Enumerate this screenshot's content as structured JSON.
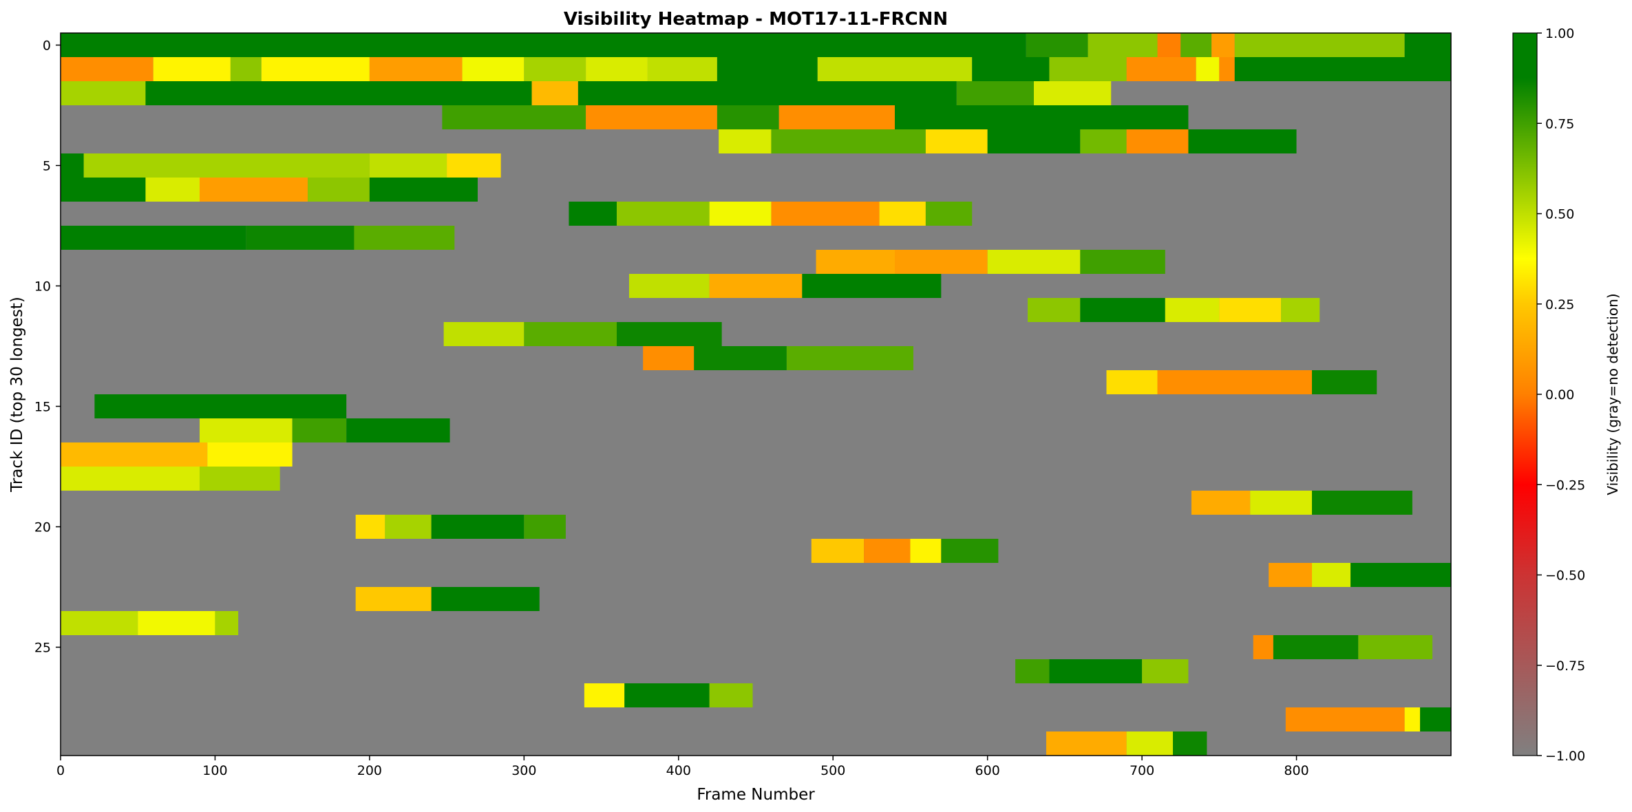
{
  "chart_data": {
    "type": "heatmap",
    "title": "Visibility Heatmap - MOT17-11-FRCNN",
    "xlabel": "Frame Number",
    "ylabel": "Track ID (top 30 longest)",
    "xlim": [
      0,
      900
    ],
    "ylim": [
      29.5,
      -0.5
    ],
    "x_ticks": [
      0,
      100,
      200,
      300,
      400,
      500,
      600,
      700,
      800
    ],
    "y_ticks": [
      0,
      5,
      10,
      15,
      20,
      25
    ],
    "colorbar": {
      "label": "Visibility (gray=no detection)",
      "range": [
        -1.0,
        1.0
      ],
      "ticks": [
        "1.00",
        "0.75",
        "0.50",
        "0.25",
        "0.00",
        "−0.25",
        "−0.50",
        "−0.75",
        "−1.00"
      ],
      "tick_values": [
        1.0,
        0.75,
        0.5,
        0.25,
        0.0,
        -0.25,
        -0.5,
        -0.75,
        -1.0
      ],
      "stops": [
        {
          "v": -1.0,
          "color": "#808080"
        },
        {
          "v": -0.5,
          "color": "#cc3333"
        },
        {
          "v": -0.25,
          "color": "#ff0000"
        },
        {
          "v": 0.0,
          "color": "#ff8000"
        },
        {
          "v": 0.25,
          "color": "#ffc800"
        },
        {
          "v": 0.375,
          "color": "#ffff00"
        },
        {
          "v": 0.625,
          "color": "#80c000"
        },
        {
          "v": 0.875,
          "color": "#008000"
        },
        {
          "v": 1.0,
          "color": "#008000"
        }
      ]
    },
    "no_detection_color": "#808080",
    "tracks": [
      {
        "id": 0,
        "segments": [
          [
            0,
            625,
            1.0
          ],
          [
            625,
            665,
            0.8
          ],
          [
            665,
            710,
            0.6
          ],
          [
            710,
            725,
            0.0
          ],
          [
            725,
            745,
            0.7
          ],
          [
            745,
            760,
            0.1
          ],
          [
            760,
            870,
            0.6
          ],
          [
            870,
            900,
            0.9
          ]
        ]
      },
      {
        "id": 1,
        "segments": [
          [
            0,
            60,
            0.05
          ],
          [
            60,
            110,
            0.35
          ],
          [
            110,
            130,
            0.6
          ],
          [
            130,
            200,
            0.35
          ],
          [
            200,
            260,
            0.1
          ],
          [
            260,
            300,
            0.4
          ],
          [
            300,
            340,
            0.55
          ],
          [
            340,
            380,
            0.45
          ],
          [
            380,
            425,
            0.5
          ],
          [
            425,
            490,
            0.95
          ],
          [
            490,
            590,
            0.5
          ],
          [
            590,
            640,
            0.9
          ],
          [
            640,
            690,
            0.6
          ],
          [
            690,
            735,
            0.05
          ],
          [
            735,
            750,
            0.4
          ],
          [
            750,
            760,
            0.05
          ],
          [
            760,
            900,
            0.95
          ]
        ]
      },
      {
        "id": 2,
        "segments": [
          [
            0,
            55,
            0.55
          ],
          [
            55,
            305,
            0.95
          ],
          [
            305,
            335,
            0.2
          ],
          [
            335,
            580,
            0.95
          ],
          [
            580,
            630,
            0.75
          ],
          [
            630,
            680,
            0.45
          ]
        ]
      },
      {
        "id": 3,
        "segments": [
          [
            247,
            340,
            0.75
          ],
          [
            340,
            425,
            0.05
          ],
          [
            425,
            465,
            0.8
          ],
          [
            465,
            540,
            0.05
          ],
          [
            540,
            730,
            0.95
          ]
        ]
      },
      {
        "id": 4,
        "segments": [
          [
            426,
            460,
            0.45
          ],
          [
            460,
            560,
            0.7
          ],
          [
            560,
            600,
            0.3
          ],
          [
            600,
            660,
            0.95
          ],
          [
            660,
            690,
            0.65
          ],
          [
            690,
            730,
            0.05
          ],
          [
            730,
            800,
            0.95
          ]
        ]
      },
      {
        "id": 5,
        "segments": [
          [
            0,
            15,
            0.9
          ],
          [
            15,
            200,
            0.55
          ],
          [
            200,
            250,
            0.5
          ],
          [
            250,
            285,
            0.3
          ]
        ]
      },
      {
        "id": 6,
        "segments": [
          [
            0,
            55,
            0.9
          ],
          [
            55,
            90,
            0.45
          ],
          [
            90,
            160,
            0.1
          ],
          [
            160,
            200,
            0.6
          ],
          [
            200,
            270,
            0.9
          ]
        ]
      },
      {
        "id": 7,
        "segments": [
          [
            329,
            360,
            0.95
          ],
          [
            360,
            420,
            0.6
          ],
          [
            420,
            460,
            0.4
          ],
          [
            460,
            530,
            0.05
          ],
          [
            530,
            560,
            0.3
          ],
          [
            560,
            590,
            0.7
          ]
        ]
      },
      {
        "id": 8,
        "segments": [
          [
            0,
            120,
            0.95
          ],
          [
            120,
            190,
            0.85
          ],
          [
            190,
            255,
            0.7
          ]
        ]
      },
      {
        "id": 9,
        "segments": [
          [
            489,
            540,
            0.15
          ],
          [
            540,
            600,
            0.1
          ],
          [
            600,
            660,
            0.45
          ],
          [
            660,
            715,
            0.75
          ]
        ]
      },
      {
        "id": 10,
        "segments": [
          [
            368,
            420,
            0.5
          ],
          [
            420,
            480,
            0.15
          ],
          [
            480,
            570,
            0.95
          ]
        ]
      },
      {
        "id": 11,
        "segments": [
          [
            626,
            660,
            0.6
          ],
          [
            660,
            715,
            0.95
          ],
          [
            715,
            750,
            0.45
          ],
          [
            750,
            790,
            0.3
          ],
          [
            790,
            815,
            0.55
          ]
        ]
      },
      {
        "id": 12,
        "segments": [
          [
            248,
            300,
            0.5
          ],
          [
            300,
            360,
            0.7
          ],
          [
            360,
            428,
            0.85
          ]
        ]
      },
      {
        "id": 13,
        "segments": [
          [
            377,
            410,
            0.05
          ],
          [
            410,
            470,
            0.85
          ],
          [
            470,
            552,
            0.7
          ]
        ]
      },
      {
        "id": 14,
        "segments": [
          [
            677,
            710,
            0.3
          ],
          [
            710,
            810,
            0.05
          ],
          [
            810,
            852,
            0.85
          ]
        ]
      },
      {
        "id": 15,
        "segments": [
          [
            22,
            185,
            1.0
          ]
        ]
      },
      {
        "id": 16,
        "segments": [
          [
            90,
            150,
            0.45
          ],
          [
            150,
            185,
            0.75
          ],
          [
            185,
            252,
            0.95
          ]
        ]
      },
      {
        "id": 17,
        "segments": [
          [
            0,
            95,
            0.2
          ],
          [
            95,
            150,
            0.35
          ]
        ]
      },
      {
        "id": 18,
        "segments": [
          [
            0,
            90,
            0.45
          ],
          [
            90,
            142,
            0.55
          ]
        ]
      },
      {
        "id": 19,
        "segments": [
          [
            732,
            770,
            0.15
          ],
          [
            770,
            810,
            0.45
          ],
          [
            810,
            875,
            0.85
          ]
        ]
      },
      {
        "id": 20,
        "segments": [
          [
            191,
            210,
            0.3
          ],
          [
            210,
            240,
            0.55
          ],
          [
            240,
            300,
            0.95
          ],
          [
            300,
            327,
            0.75
          ]
        ]
      },
      {
        "id": 21,
        "segments": [
          [
            486,
            520,
            0.25
          ],
          [
            520,
            550,
            0.05
          ],
          [
            550,
            570,
            0.35
          ],
          [
            570,
            607,
            0.8
          ]
        ]
      },
      {
        "id": 22,
        "segments": [
          [
            782,
            810,
            0.1
          ],
          [
            810,
            835,
            0.45
          ],
          [
            835,
            900,
            1.0
          ]
        ]
      },
      {
        "id": 23,
        "segments": [
          [
            191,
            240,
            0.25
          ],
          [
            240,
            310,
            0.95
          ]
        ]
      },
      {
        "id": 24,
        "segments": [
          [
            0,
            50,
            0.5
          ],
          [
            50,
            100,
            0.4
          ],
          [
            100,
            115,
            0.55
          ]
        ]
      },
      {
        "id": 25,
        "segments": [
          [
            772,
            785,
            0.05
          ],
          [
            785,
            840,
            0.85
          ],
          [
            840,
            888,
            0.65
          ]
        ]
      },
      {
        "id": 26,
        "segments": [
          [
            618,
            640,
            0.75
          ],
          [
            640,
            700,
            0.95
          ],
          [
            700,
            730,
            0.6
          ]
        ]
      },
      {
        "id": 27,
        "segments": [
          [
            339,
            365,
            0.35
          ],
          [
            365,
            420,
            0.95
          ],
          [
            420,
            448,
            0.6
          ]
        ]
      },
      {
        "id": 28,
        "segments": [
          [
            793,
            870,
            0.05
          ],
          [
            870,
            880,
            0.35
          ],
          [
            880,
            900,
            0.95
          ]
        ]
      },
      {
        "id": 29,
        "segments": [
          [
            638,
            690,
            0.15
          ],
          [
            690,
            720,
            0.45
          ],
          [
            720,
            742,
            0.85
          ]
        ]
      }
    ]
  }
}
